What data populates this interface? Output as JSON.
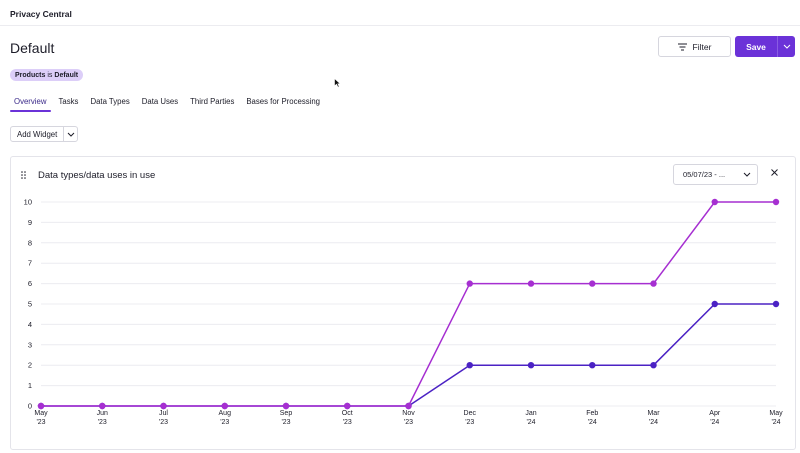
{
  "app": {
    "title": "Privacy Central"
  },
  "page": {
    "title": "Default"
  },
  "toolbar": {
    "filter_label": "Filter",
    "save_label": "Save"
  },
  "filter_chip": {
    "field": "Products",
    "operator": "is",
    "value": "Default"
  },
  "tabs": [
    {
      "label": "Overview",
      "active": true
    },
    {
      "label": "Tasks"
    },
    {
      "label": "Data Types"
    },
    {
      "label": "Data Uses"
    },
    {
      "label": "Third Parties"
    },
    {
      "label": "Bases for Processing"
    }
  ],
  "add_widget_label": "Add Widget",
  "widget": {
    "title": "Data types/data uses in use",
    "date_range": "05/07/23 - ..."
  },
  "colors": {
    "accent": "#6b32d8",
    "series_magenta": "#a62fd1",
    "series_indigo": "#4b22c4"
  },
  "chart_data": {
    "type": "line",
    "x": [
      [
        "May",
        "'23"
      ],
      [
        "Jun",
        "'23"
      ],
      [
        "Jul",
        "'23"
      ],
      [
        "Aug",
        "'23"
      ],
      [
        "Sep",
        "'23"
      ],
      [
        "Oct",
        "'23"
      ],
      [
        "Nov",
        "'23"
      ],
      [
        "Dec",
        "'23"
      ],
      [
        "Jan",
        "'24"
      ],
      [
        "Feb",
        "'24"
      ],
      [
        "Mar",
        "'24"
      ],
      [
        "Apr",
        "'24"
      ],
      [
        "May",
        "'24"
      ]
    ],
    "series": [
      {
        "color": "#a62fd1",
        "values": [
          0,
          0,
          0,
          0,
          0,
          0,
          0,
          6,
          6,
          6,
          6,
          10,
          10
        ]
      },
      {
        "color": "#4b22c4",
        "values": [
          0,
          0,
          0,
          0,
          0,
          0,
          0,
          2,
          2,
          2,
          2,
          5,
          5
        ]
      }
    ],
    "yticks": [
      0,
      1,
      2,
      3,
      4,
      5,
      6,
      7,
      8,
      9,
      10
    ],
    "ylim": [
      0,
      10
    ],
    "grid": true,
    "legend": "none"
  }
}
